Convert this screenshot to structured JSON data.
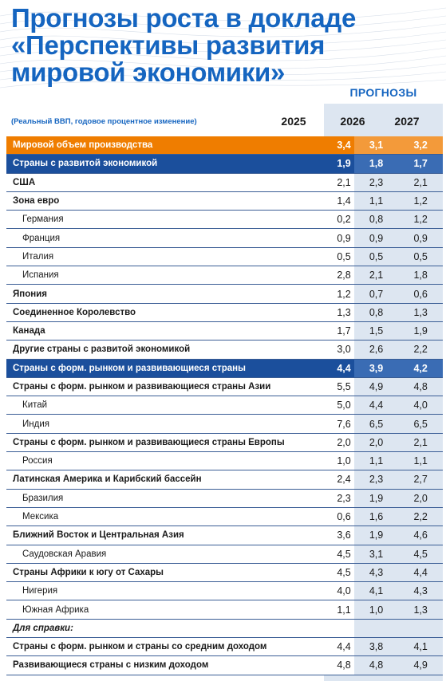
{
  "title_lines": [
    "Прогнозы роста в докладе",
    "«Перспективы развития",
    "мировой экономики»"
  ],
  "forecast_label": "ПРОГНОЗЫ",
  "units_note": "(Реальный ВВП, годовое процентное изменение)",
  "years": [
    "2025",
    "2026",
    "2027"
  ],
  "colors": {
    "title": "#1565c0",
    "world_row": "#ef7d00",
    "group_row": "#1b4f9c",
    "forecast_bg": "#dde6f1"
  },
  "chart_data": {
    "type": "table",
    "columns": [
      "2025",
      "2026",
      "2027"
    ],
    "rows": [
      {
        "label": "Мировой объем производства",
        "style": "world",
        "values": [
          "3,4",
          "3,1",
          "3,2"
        ]
      },
      {
        "label": "Страны с развитой экономикой",
        "style": "blue",
        "values": [
          "1,9",
          "1,8",
          "1,7"
        ]
      },
      {
        "label": "США",
        "style": "bold",
        "values": [
          "2,1",
          "2,3",
          "2,1"
        ]
      },
      {
        "label": "Зона евро",
        "style": "bold",
        "values": [
          "1,4",
          "1,1",
          "1,2"
        ]
      },
      {
        "label": "Германия",
        "style": "sub",
        "values": [
          "0,2",
          "0,8",
          "1,2"
        ]
      },
      {
        "label": "Франция",
        "style": "sub",
        "values": [
          "0,9",
          "0,9",
          "0,9"
        ]
      },
      {
        "label": "Италия",
        "style": "sub",
        "values": [
          "0,5",
          "0,5",
          "0,5"
        ]
      },
      {
        "label": "Испания",
        "style": "sub",
        "values": [
          "2,8",
          "2,1",
          "1,8"
        ]
      },
      {
        "label": "Япония",
        "style": "bold",
        "values": [
          "1,2",
          "0,7",
          "0,6"
        ]
      },
      {
        "label": "Соединенное Королевство",
        "style": "bold",
        "values": [
          "1,3",
          "0,8",
          "1,3"
        ]
      },
      {
        "label": "Канада",
        "style": "bold",
        "values": [
          "1,7",
          "1,5",
          "1,9"
        ]
      },
      {
        "label": "Другие страны с развитой экономикой",
        "style": "bold",
        "values": [
          "3,0",
          "2,6",
          "2,2"
        ]
      },
      {
        "label": "Страны с форм. рынком и развивающиеся страны",
        "style": "blue",
        "values": [
          "4,4",
          "3,9",
          "4,2"
        ]
      },
      {
        "label": "Страны с форм. рынком и развивающиеся страны Азии",
        "style": "bold",
        "values": [
          "5,5",
          "4,9",
          "4,8"
        ]
      },
      {
        "label": "Китай",
        "style": "sub",
        "values": [
          "5,0",
          "4,4",
          "4,0"
        ]
      },
      {
        "label": "Индия",
        "style": "sub",
        "values": [
          "7,6",
          "6,5",
          "6,5"
        ]
      },
      {
        "label": "Страны с форм. рынком и развивающиеся страны Европы",
        "style": "bold",
        "values": [
          "2,0",
          "2,0",
          "2,1"
        ]
      },
      {
        "label": "Россия",
        "style": "sub",
        "values": [
          "1,0",
          "1,1",
          "1,1"
        ]
      },
      {
        "label": "Латинская Америка и Карибский бассейн",
        "style": "bold",
        "values": [
          "2,4",
          "2,3",
          "2,7"
        ]
      },
      {
        "label": "Бразилия",
        "style": "sub",
        "values": [
          "2,3",
          "1,9",
          "2,0"
        ]
      },
      {
        "label": "Мексика",
        "style": "sub",
        "values": [
          "0,6",
          "1,6",
          "2,2"
        ]
      },
      {
        "label": "Ближний Восток и Центральная Азия",
        "style": "bold",
        "values": [
          "3,6",
          "1,9",
          "4,6"
        ]
      },
      {
        "label": "Саудовская Аравия",
        "style": "sub",
        "values": [
          "4,5",
          "3,1",
          "4,5"
        ]
      },
      {
        "label": "Страны Африки к югу от Сахары",
        "style": "bold",
        "values": [
          "4,5",
          "4,3",
          "4,4"
        ]
      },
      {
        "label": "Нигерия",
        "style": "sub",
        "values": [
          "4,0",
          "4,1",
          "4,3"
        ]
      },
      {
        "label": "Южная Африка",
        "style": "sub",
        "values": [
          "1,1",
          "1,0",
          "1,3"
        ]
      },
      {
        "label": "Для справки:",
        "style": "note",
        "values": [
          "",
          "",
          ""
        ]
      },
      {
        "label": "Страны с форм. рынком и страны со средним доходом",
        "style": "bold",
        "values": [
          "4,4",
          "3,8",
          "4,1"
        ]
      },
      {
        "label": "Развивающиеся страны с низким доходом",
        "style": "bold",
        "values": [
          "4,8",
          "4,8",
          "4,9"
        ]
      }
    ]
  }
}
